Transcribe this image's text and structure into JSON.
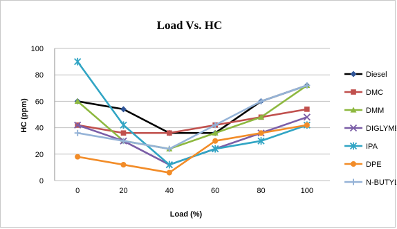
{
  "chart_data": {
    "type": "line",
    "title": "Load Vs. HC",
    "xlabel": "Load (%)",
    "ylabel": "HC (ppm)",
    "x": [
      0,
      20,
      40,
      60,
      80,
      100
    ],
    "xlim": [
      0,
      100
    ],
    "ylim": [
      0,
      100
    ],
    "yticks": [
      0,
      20,
      40,
      60,
      80,
      100
    ],
    "grid": "horizontal",
    "legend": "right",
    "series": [
      {
        "name": "Diesel",
        "color": "#000000",
        "marker": "diamond",
        "marker_color": "#2f5597",
        "values": [
          60,
          54,
          36,
          36,
          60,
          72
        ]
      },
      {
        "name": "DMC",
        "color": "#c0504d",
        "marker": "square",
        "marker_color": "#c0504d",
        "values": [
          42,
          36,
          36,
          42,
          48,
          54
        ]
      },
      {
        "name": "DMM",
        "color": "#8db83f",
        "marker": "triangle",
        "marker_color": "#8db83f",
        "values": [
          60,
          30,
          24,
          36,
          48,
          72
        ]
      },
      {
        "name": "DIGLYME",
        "color": "#7b5ea7",
        "marker": "x",
        "marker_color": "#7b5ea7",
        "values": [
          42,
          30,
          12,
          24,
          36,
          48
        ]
      },
      {
        "name": "IPA",
        "color": "#31a5c4",
        "marker": "star",
        "marker_color": "#31a5c4",
        "values": [
          90,
          42,
          12,
          24,
          30,
          42
        ]
      },
      {
        "name": "DPE",
        "color": "#f28c28",
        "marker": "circle",
        "marker_color": "#f28c28",
        "values": [
          18,
          12,
          6,
          30,
          36,
          42
        ]
      },
      {
        "name": "N-BUTYL",
        "color": "#95b3d7",
        "marker": "plus",
        "marker_color": "#95b3d7",
        "values": [
          36,
          30,
          24,
          42,
          60,
          72
        ]
      }
    ]
  }
}
